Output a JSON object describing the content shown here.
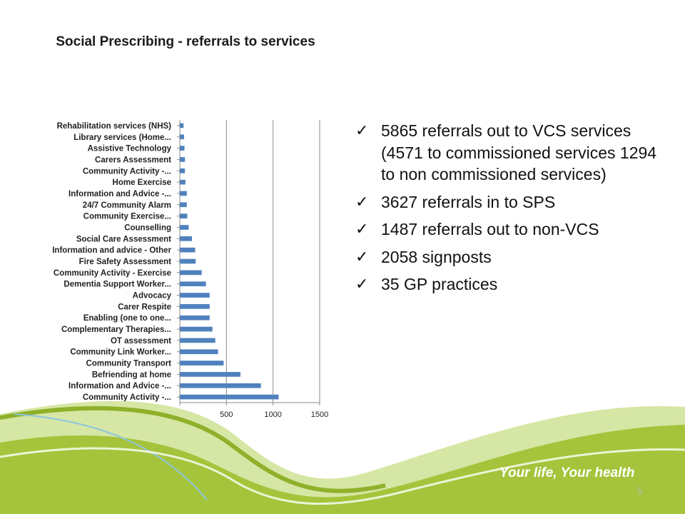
{
  "chart_data": {
    "type": "bar",
    "orientation": "horizontal",
    "title": "Social Prescribing - referrals to services",
    "categories": [
      "Rehabilitation services (NHS)",
      "Library services (Home...",
      "Assistive Technology",
      "Carers Assessment",
      "Community Activity -...",
      "Home Exercise",
      "Information and Advice -...",
      "24/7 Community Alarm",
      "Community Exercise...",
      "Counselling",
      "Social Care Assessment",
      "Information and advice - Other",
      "Fire Safety Assessment",
      "Community Activity - Exercise",
      "Dementia Support Worker...",
      "Advocacy",
      "Carer Respite",
      "Enabling (one to one...",
      "Complementary Therapies...",
      "OT assessment",
      "Community Link Worker...",
      "Community Transport",
      "Befriending at home",
      "Information and Advice -...",
      "Community Activity -..."
    ],
    "values": [
      40,
      45,
      50,
      55,
      55,
      60,
      75,
      75,
      80,
      95,
      130,
      165,
      170,
      235,
      280,
      320,
      320,
      320,
      350,
      380,
      410,
      470,
      650,
      870,
      1060
    ],
    "xlim": [
      0,
      1500
    ],
    "xticks": [
      "0",
      "500",
      "1000",
      "1500"
    ],
    "grid": true,
    "bar_color": "#4f81bd"
  },
  "bullets": [
    "5865 referrals out to VCS services (4571 to commissioned services 1294 to non commissioned services)",
    "3627 referrals in to SPS",
    "1487 referrals out to non-VCS",
    "2058 signposts",
    "35 GP practices"
  ],
  "check_glyph": "✓",
  "slogan": "Your life, Your health",
  "page_number": "5",
  "colors": {
    "wave_green": "#a5c43b",
    "wave_dark": "#8fb02a",
    "wave_blue": "#8cc6e0"
  }
}
